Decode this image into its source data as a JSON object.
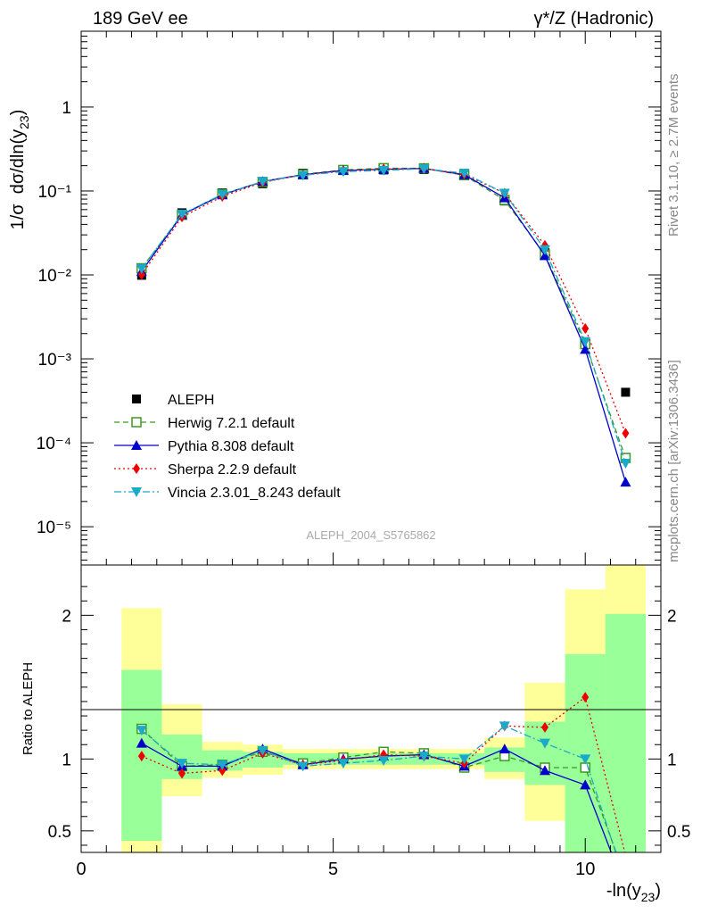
{
  "header": {
    "left": "189 GeV ee",
    "right": "γ*/Z (Hadronic)"
  },
  "side_labels": {
    "rivet": "Rivet 3.1.10, ≥ 2.7M events",
    "mcplots": "mcplots.cern.ch [arXiv:1306.3436]"
  },
  "watermark": "ALEPH_2004_S5765862",
  "chart_data": [
    {
      "type": "line",
      "panel": "main",
      "ylabel": "1/σ dσ/dln(y23)",
      "yscale": "log",
      "ylim": [
        3.5e-06,
        8
      ],
      "xlim": [
        0,
        11.5
      ],
      "ytick_labels": [
        "10⁻⁵",
        "10⁻⁴",
        "10⁻³",
        "10⁻²",
        "10⁻¹",
        "1"
      ],
      "legend_position": "lower-left",
      "x": [
        1.2,
        2.0,
        2.8,
        3.6,
        4.4,
        5.2,
        6.0,
        6.8,
        7.6,
        8.4,
        9.2,
        10.0,
        10.8
      ],
      "series": [
        {
          "name": "ALEPH",
          "color": "#000000",
          "marker": "square",
          "values": [
            0.0099,
            0.055,
            0.095,
            0.122,
            0.163,
            0.176,
            0.178,
            0.18,
            0.163,
            0.076,
            0.0185,
            0.0016,
            0.0004
          ]
        },
        {
          "name": "Herwig 7.2.1 default",
          "color": "#3a9a1e",
          "marker": "open-square",
          "dash": "6,4",
          "values": [
            0.012,
            0.052,
            0.092,
            0.128,
            0.158,
            0.178,
            0.187,
            0.186,
            0.154,
            0.078,
            0.0175,
            0.0015,
            6.6e-05
          ]
        },
        {
          "name": "Pythia 8.308 default",
          "color": "#0000cc",
          "marker": "triangle-up",
          "dash": "",
          "values": [
            0.011,
            0.052,
            0.09,
            0.13,
            0.156,
            0.176,
            0.181,
            0.186,
            0.156,
            0.083,
            0.017,
            0.0013,
            3.4e-05
          ]
        },
        {
          "name": "Sherpa 2.2.9 default",
          "color": "#ee0000",
          "marker": "diamond",
          "dash": "2,3",
          "values": [
            0.0101,
            0.049,
            0.086,
            0.127,
            0.156,
            0.174,
            0.183,
            0.184,
            0.158,
            0.094,
            0.0225,
            0.0023,
            0.00013
          ]
        },
        {
          "name": "Vincia 2.3.01_8.243 default",
          "color": "#1aa9c9",
          "marker": "triangle-down",
          "dash": "8,3,2,3",
          "values": [
            0.0119,
            0.053,
            0.091,
            0.13,
            0.154,
            0.17,
            0.176,
            0.184,
            0.163,
            0.094,
            0.02,
            0.0016,
            5.7e-05
          ]
        }
      ]
    },
    {
      "type": "line",
      "panel": "ratio",
      "ylabel": "Ratio to ALEPH",
      "xlabel": "-ln(y23)",
      "ylim": [
        0.35,
        2.35
      ],
      "xlim": [
        0,
        11.5
      ],
      "xticks": [
        0,
        5,
        10
      ],
      "yticks": [
        0.5,
        1,
        2
      ],
      "band_x_edges": [
        0.8,
        1.6,
        2.4,
        3.2,
        4.0,
        4.8,
        5.6,
        6.4,
        7.2,
        8.0,
        8.8,
        9.6,
        10.4,
        11.2
      ],
      "band_yellow": [
        [
          0.2,
          2.05
        ],
        [
          0.74,
          1.38
        ],
        [
          0.87,
          1.12
        ],
        [
          0.89,
          1.1
        ],
        [
          0.93,
          1.07
        ],
        [
          0.93,
          1.07
        ],
        [
          0.93,
          1.07
        ],
        [
          0.93,
          1.07
        ],
        [
          0.93,
          1.07
        ],
        [
          0.86,
          1.15
        ],
        [
          0.57,
          1.53
        ],
        [
          0.2,
          2.18
        ],
        [
          0.2,
          2.35
        ]
      ],
      "band_green": [
        [
          0.43,
          1.62
        ],
        [
          0.86,
          1.17
        ],
        [
          0.92,
          1.06
        ],
        [
          0.94,
          1.05
        ],
        [
          0.96,
          1.04
        ],
        [
          0.96,
          1.04
        ],
        [
          0.96,
          1.04
        ],
        [
          0.96,
          1.04
        ],
        [
          0.96,
          1.04
        ],
        [
          0.91,
          1.08
        ],
        [
          0.82,
          1.26
        ],
        [
          0.2,
          1.73
        ],
        [
          0.2,
          2.01
        ]
      ],
      "x": [
        1.2,
        2.0,
        2.8,
        3.6,
        4.4,
        5.2,
        6.0,
        6.8,
        7.6,
        8.4,
        9.2,
        10.0,
        10.8
      ],
      "series": [
        {
          "name": "Herwig 7.2.1 default",
          "color": "#3a9a1e",
          "marker": "open-square",
          "dash": "6,4",
          "values": [
            1.21,
            0.95,
            0.96,
            1.05,
            0.97,
            1.01,
            1.05,
            1.04,
            0.94,
            1.02,
            0.94,
            0.94,
            0.17
          ]
        },
        {
          "name": "Pythia 8.308 default",
          "color": "#0000cc",
          "marker": "triangle-up",
          "dash": "",
          "values": [
            1.11,
            0.95,
            0.95,
            1.07,
            0.96,
            1.0,
            1.02,
            1.03,
            0.95,
            1.07,
            0.92,
            0.82,
            0.09
          ]
        },
        {
          "name": "Sherpa 2.2.9 default",
          "color": "#ee0000",
          "marker": "diamond",
          "dash": "2,3",
          "values": [
            1.02,
            0.9,
            0.92,
            1.04,
            0.96,
            0.99,
            1.03,
            1.02,
            0.97,
            1.23,
            1.22,
            1.43,
            0.33
          ]
        },
        {
          "name": "Vincia 2.3.01_8.243 default",
          "color": "#1aa9c9",
          "marker": "triangle-down",
          "dash": "8,3,2,3",
          "values": [
            1.2,
            0.97,
            0.96,
            1.06,
            0.95,
            0.97,
            0.99,
            1.02,
            1.0,
            1.23,
            1.11,
            1.0,
            0.14
          ]
        }
      ]
    }
  ]
}
